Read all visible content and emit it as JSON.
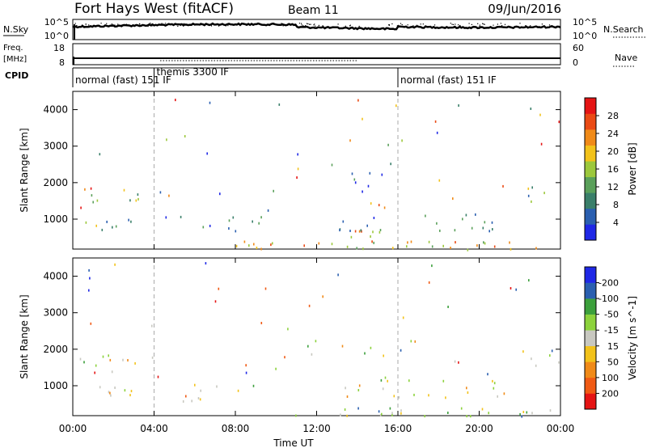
{
  "header": {
    "title": "Fort Hays West (fitACF)",
    "beam": "Beam 11",
    "date": "09/Jun/2016"
  },
  "strips": {
    "nsky_label": "N.Sky",
    "nsky_ticks": [
      "10^5",
      "10^0"
    ],
    "nsearch_label": "N.Search",
    "nsearch_ticks": [
      "10^5",
      "10^0"
    ],
    "freq_label": "Freq.",
    "freq_unit": "[MHz]",
    "freq_ticks": [
      "18",
      "8"
    ],
    "nave_label": "Nave",
    "nave_ticks": [
      "60",
      "0"
    ],
    "cpid_label": "CPID",
    "cpid_segments": [
      {
        "label": "normal (fast) 151 IF",
        "start": 0,
        "end": 4
      },
      {
        "label": "themis 3300 IF",
        "start": 4,
        "end": 16
      },
      {
        "label": "normal (fast) 151 IF",
        "start": 16,
        "end": 24
      }
    ]
  },
  "colors": {
    "power": [
      "#1f28e6",
      "#2a5fb0",
      "#3a7f6a",
      "#5aa05a",
      "#9cc83c",
      "#f2c21a",
      "#f08a18",
      "#ea4a14",
      "#e51414"
    ],
    "velocity": [
      "#e51414",
      "#f05a14",
      "#f08a18",
      "#f2c21a",
      "#c8c8c0",
      "#8cd23c",
      "#3ca03c",
      "#2a5fb0",
      "#1f28e6"
    ]
  },
  "chart_data": [
    {
      "type": "heatmap",
      "name": "power",
      "ylabel": "Slant Range [km]",
      "xlabel": "",
      "x_ticks": [
        "00:00",
        "04:00",
        "08:00",
        "12:00",
        "16:00",
        "20:00",
        "00:00"
      ],
      "xlim": [
        0,
        24
      ],
      "ylim": [
        180,
        4500
      ],
      "y_ticks": [
        "1000",
        "2000",
        "3000",
        "4000"
      ],
      "colorbar_label": "Power [dB]",
      "colorbar_ticks": [
        "4",
        "8",
        "12",
        "16",
        "20",
        "24",
        "28"
      ],
      "colorbar_range": [
        0,
        32
      ],
      "regions": [
        {
          "t0": 0.5,
          "t1": 3.5,
          "r0": 1400,
          "r1": 1900,
          "level": 0.45,
          "density": 0.55
        },
        {
          "t0": 0.3,
          "t1": 3.0,
          "r0": 600,
          "r1": 1100,
          "level": 0.35,
          "density": 0.5
        },
        {
          "t0": 4.5,
          "t1": 9.3,
          "r0": 600,
          "r1": 1100,
          "level": 0.25,
          "density": 0.4
        },
        {
          "t0": 8.0,
          "t1": 24,
          "r0": 180,
          "r1": 420,
          "level": 0.6,
          "density": 0.75
        },
        {
          "t0": 13.5,
          "t1": 15.8,
          "r0": 400,
          "r1": 900,
          "level": 0.65,
          "density": 0.6
        },
        {
          "t0": 13.0,
          "t1": 21.5,
          "r0": 700,
          "r1": 1200,
          "level": 0.3,
          "density": 0.45
        },
        {
          "t0": 11.5,
          "t1": 17.0,
          "r0": 1800,
          "r1": 2300,
          "level": 0.2,
          "density": 0.2
        },
        {
          "t0": 22.0,
          "t1": 24,
          "r0": 1600,
          "r1": 2000,
          "level": 0.4,
          "density": 0.4
        }
      ]
    },
    {
      "type": "heatmap",
      "name": "velocity",
      "ylabel": "Slant Range [km]",
      "xlabel": "Time UT",
      "x_ticks": [
        "00:00",
        "04:00",
        "08:00",
        "12:00",
        "16:00",
        "20:00",
        "00:00"
      ],
      "xlim": [
        0,
        24
      ],
      "ylim": [
        180,
        4500
      ],
      "y_ticks": [
        "1000",
        "2000",
        "3000",
        "4000"
      ],
      "colorbar_label": "Velocity [m s^-1]",
      "colorbar_ticks": [
        "-200",
        "-100",
        "-50",
        "-15",
        "15",
        "50",
        "100",
        "200"
      ],
      "regions": [
        {
          "t0": 0.5,
          "t1": 3.5,
          "r0": 1400,
          "r1": 1900,
          "level": 0.5,
          "density": 0.55
        },
        {
          "t0": 0.3,
          "t1": 3.0,
          "r0": 600,
          "r1": 1100,
          "level": 0.5,
          "density": 0.5
        },
        {
          "t0": 4.5,
          "t1": 8.5,
          "r0": 600,
          "r1": 1100,
          "level": 0.33,
          "density": 0.4
        },
        {
          "t0": 8.5,
          "t1": 9.3,
          "r0": 900,
          "r1": 1100,
          "level": 0.65,
          "density": 0.5
        },
        {
          "t0": 10.0,
          "t1": 24,
          "r0": 180,
          "r1": 420,
          "level": 0.62,
          "density": 0.7
        },
        {
          "t0": 13.0,
          "t1": 21.5,
          "r0": 700,
          "r1": 1200,
          "level": 0.5,
          "density": 0.45
        },
        {
          "t0": 11.5,
          "t1": 17.0,
          "r0": 1800,
          "r1": 2300,
          "level": 0.5,
          "density": 0.2
        },
        {
          "t0": 22.0,
          "t1": 24,
          "r0": 1600,
          "r1": 2000,
          "level": 0.5,
          "density": 0.4
        }
      ]
    }
  ]
}
